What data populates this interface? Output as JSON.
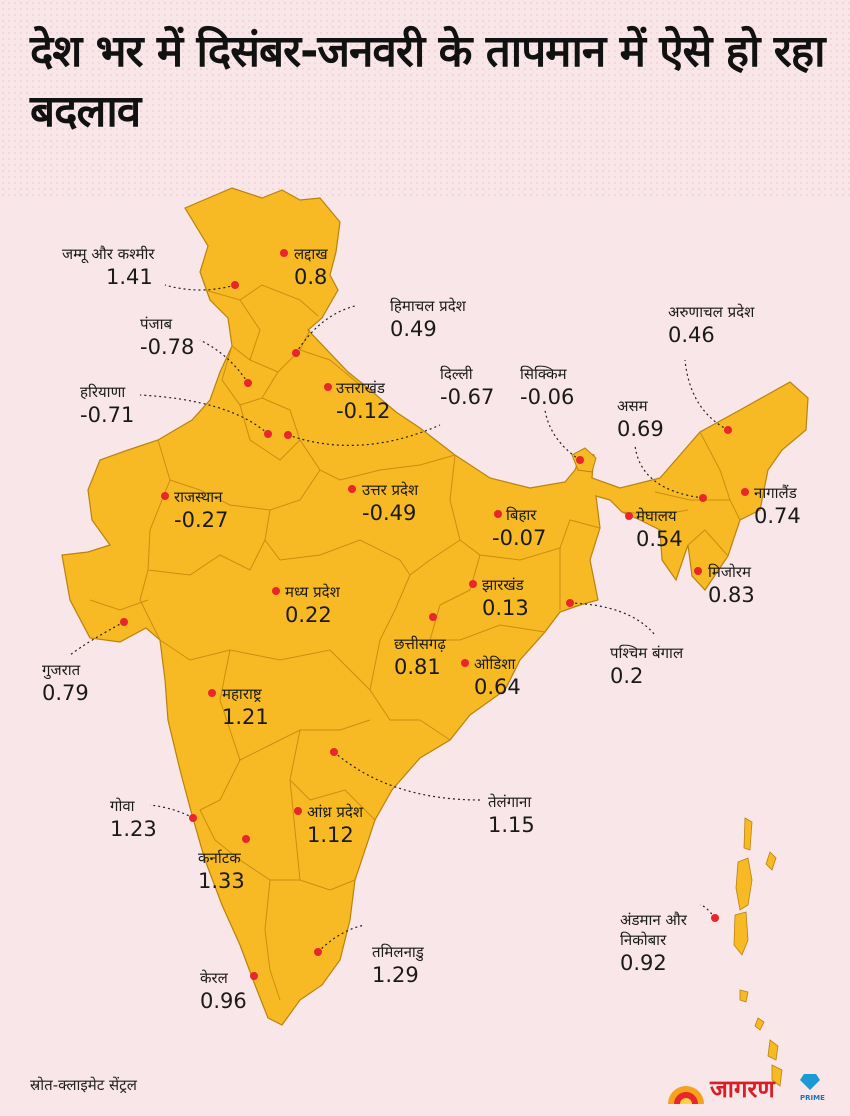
{
  "title": "देश भर में दिसंबर-जनवरी के तापमान में ऐसे हो रहा बदलाव",
  "source": "स्रोत-क्लाइमेट सेंट्रल",
  "logo": {
    "text": "जागरण",
    "sub": "PRIME"
  },
  "colors": {
    "land": "#f7b924",
    "border": "#b9830e",
    "dot": "#e8262b",
    "background": "#f8e6e8"
  },
  "regions": [
    {
      "id": "jk",
      "name": "जम्मू और कश्मीर",
      "value": "1.41"
    },
    {
      "id": "ladakh",
      "name": "लद्दाख",
      "value": "0.8"
    },
    {
      "id": "hp",
      "name": "हिमाचल प्रदेश",
      "value": "0.49"
    },
    {
      "id": "punjab",
      "name": "पंजाब",
      "value": "-0.78"
    },
    {
      "id": "haryana",
      "name": "हरियाणा",
      "value": "-0.71"
    },
    {
      "id": "uk",
      "name": "उत्तराखंड",
      "value": "-0.12"
    },
    {
      "id": "delhi",
      "name": "दिल्ली",
      "value": "-0.67"
    },
    {
      "id": "sikkim",
      "name": "सिक्किम",
      "value": "-0.06"
    },
    {
      "id": "arunachal",
      "name": "अरुणाचल प्रदेश",
      "value": "0.46"
    },
    {
      "id": "assam",
      "name": "असम",
      "value": "0.69"
    },
    {
      "id": "nagaland",
      "name": "नागालैंड",
      "value": "0.74"
    },
    {
      "id": "meghalaya",
      "name": "मेघालय",
      "value": "0.54"
    },
    {
      "id": "mizoram",
      "name": "मिजोरम",
      "value": "0.83"
    },
    {
      "id": "rajasthan",
      "name": "राजस्थान",
      "value": "-0.27"
    },
    {
      "id": "up",
      "name": "उत्तर प्रदेश",
      "value": "-0.49"
    },
    {
      "id": "bihar",
      "name": "बिहार",
      "value": "-0.07"
    },
    {
      "id": "jharkhand",
      "name": "झारखंड",
      "value": "0.13"
    },
    {
      "id": "wb",
      "name": "पश्चिम बंगाल",
      "value": "0.2"
    },
    {
      "id": "gujarat",
      "name": "गुजरात",
      "value": "0.79"
    },
    {
      "id": "mp",
      "name": "मध्य प्रदेश",
      "value": "0.22"
    },
    {
      "id": "chhattisgarh",
      "name": "छत्तीसगढ़",
      "value": "0.81"
    },
    {
      "id": "odisha",
      "name": "ओडिशा",
      "value": "0.64"
    },
    {
      "id": "maharashtra",
      "name": "महाराष्ट्र",
      "value": "1.21"
    },
    {
      "id": "telangana",
      "name": "तेलंगाना",
      "value": "1.15"
    },
    {
      "id": "goa",
      "name": "गोवा",
      "value": "1.23"
    },
    {
      "id": "ap",
      "name": "आंध्र प्रदेश",
      "value": "1.12"
    },
    {
      "id": "karnataka",
      "name": "कर्नाटक",
      "value": "1.33"
    },
    {
      "id": "an",
      "name": "अंडमान और निकोबार",
      "value": "0.92"
    },
    {
      "id": "tn",
      "name": "तमिलनाडु",
      "value": "1.29"
    },
    {
      "id": "kerala",
      "name": "केरल",
      "value": "0.96"
    }
  ]
}
